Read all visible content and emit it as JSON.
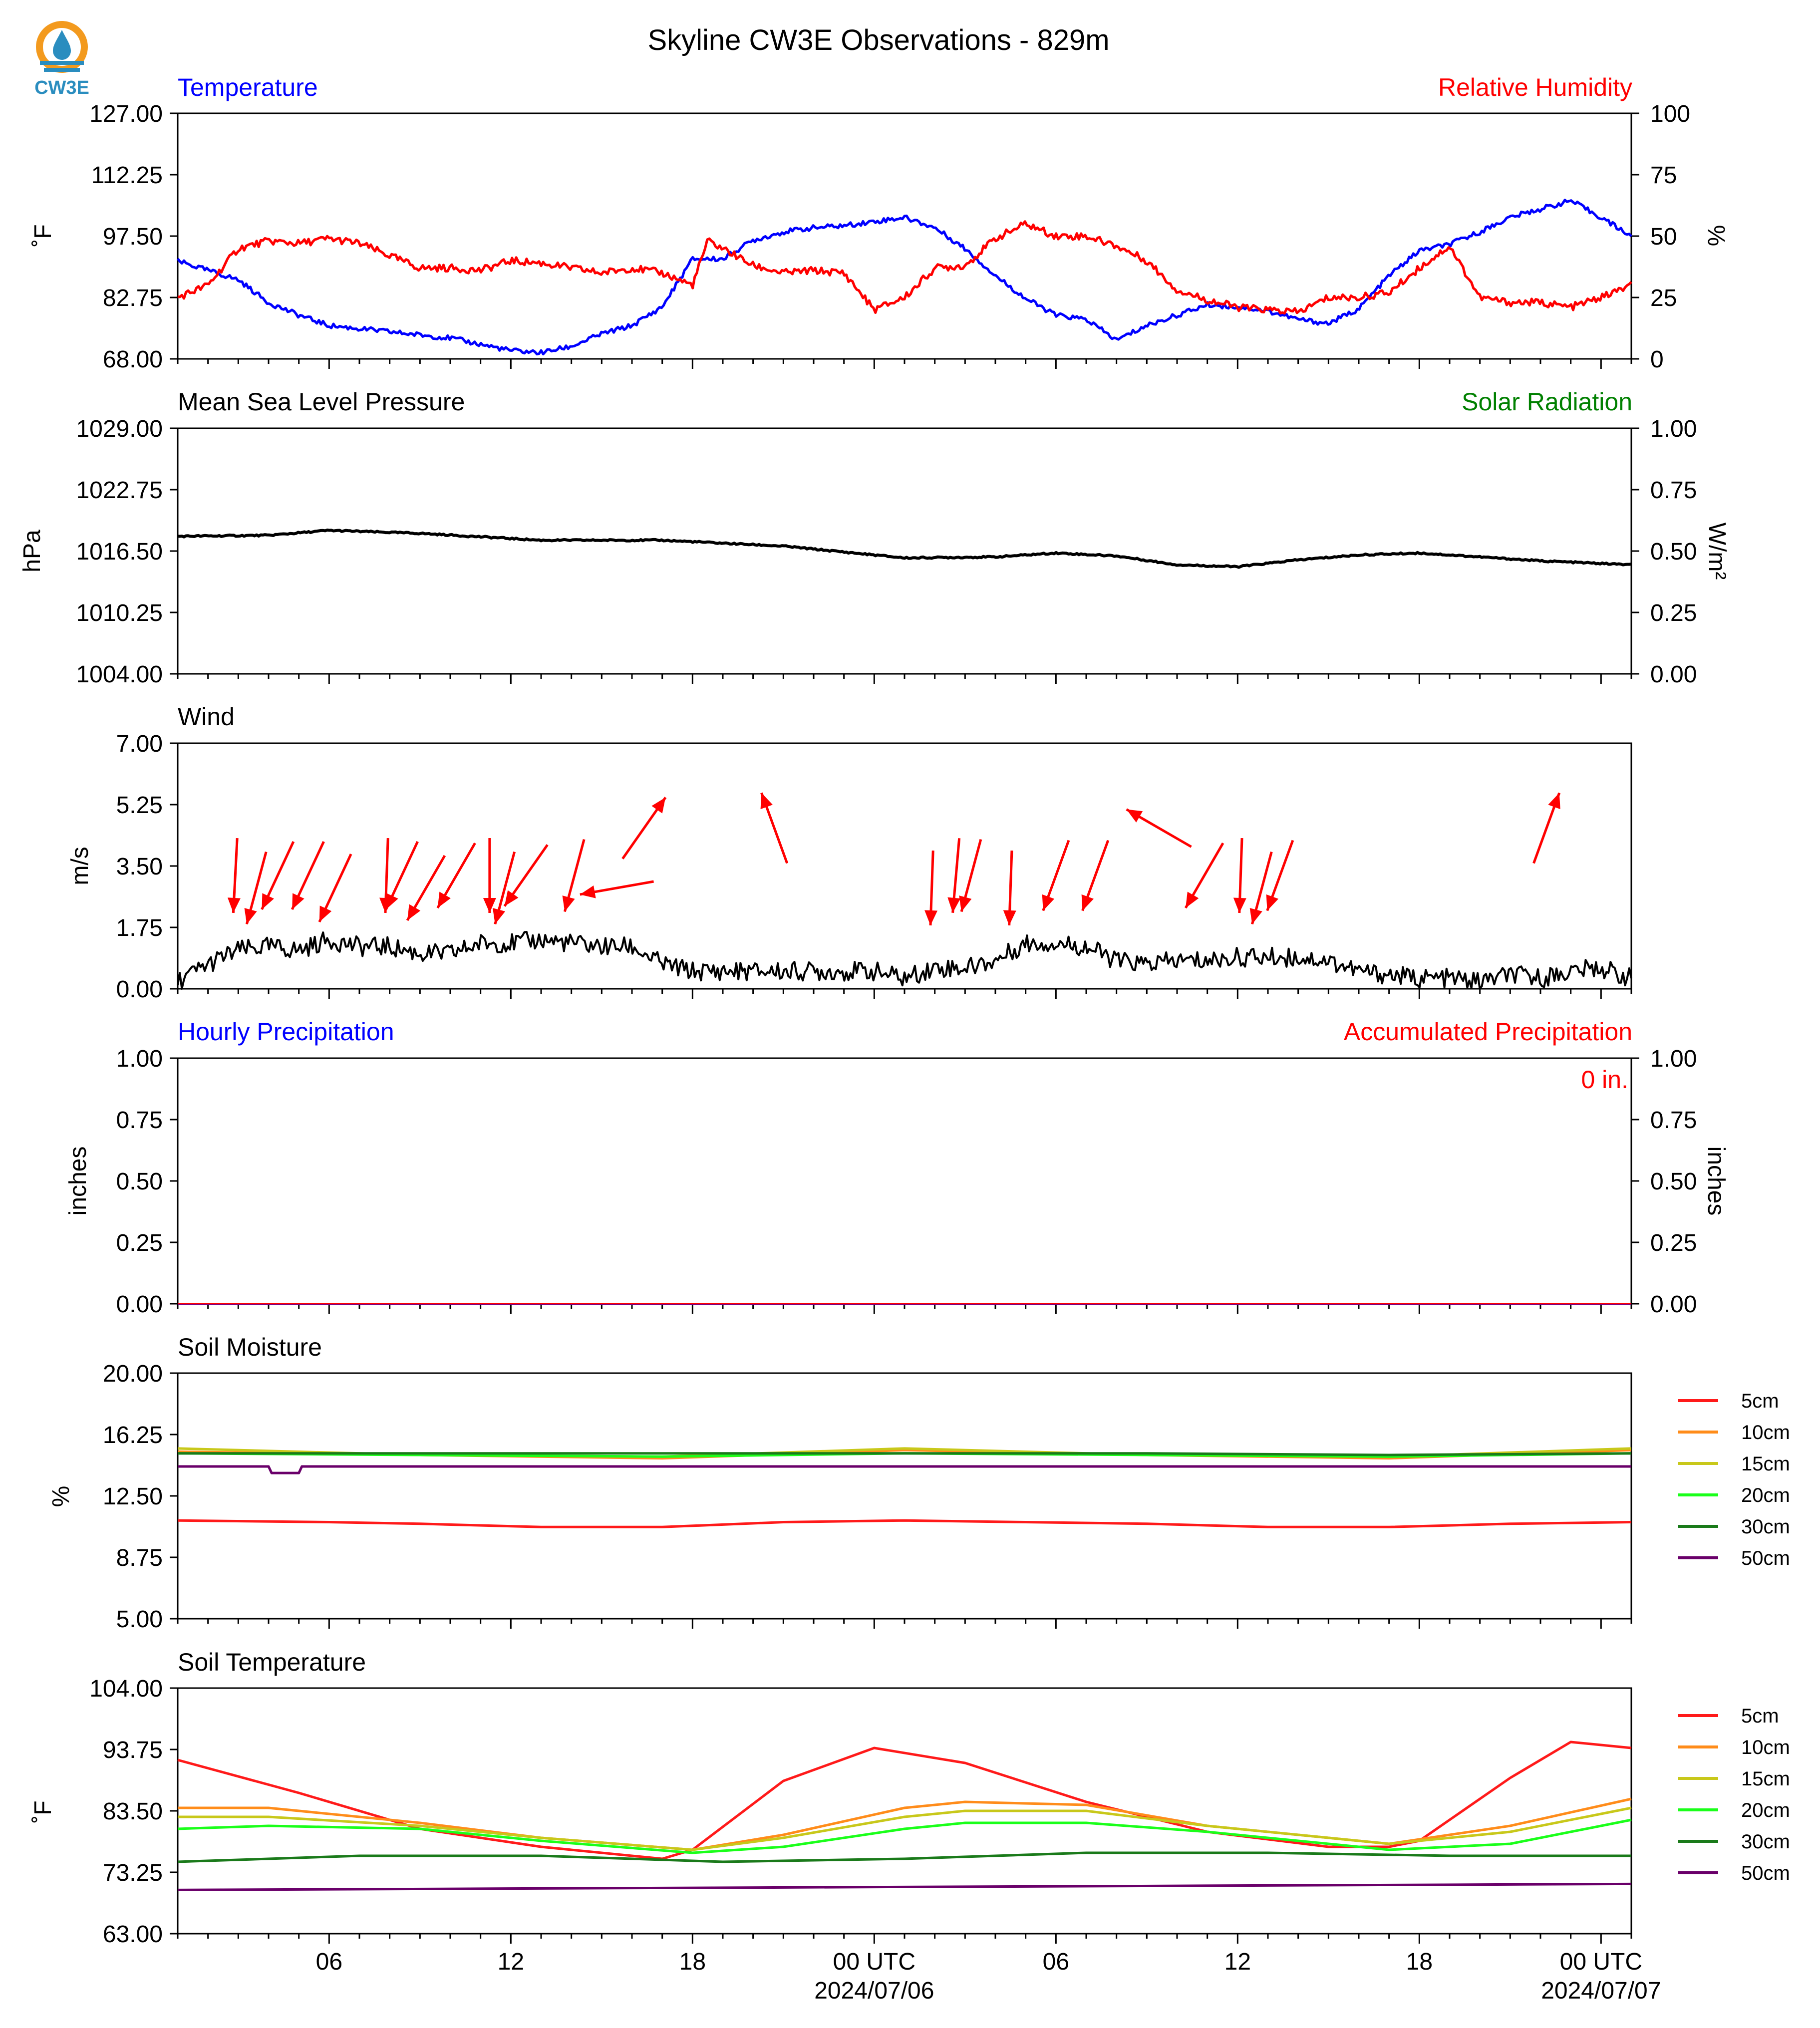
{
  "figure": {
    "title": "Skyline CW3E Observations - 829m",
    "logo_text": "CW3E",
    "x_ticks": [
      "06",
      "12",
      "18",
      "00 UTC",
      "06",
      "12",
      "18",
      "00 UTC"
    ],
    "date_labels": [
      "2024/07/06",
      "2024/07/07"
    ],
    "colors": {
      "temperature": "#0000ff",
      "humidity": "#ff0000",
      "solar": "#008000",
      "black": "#000000",
      "logo_orange": "#f39a1e",
      "logo_blue": "#2a8dbf"
    }
  },
  "panels": {
    "temp_rh": {
      "left_title": "Temperature",
      "right_title": "Relative Humidity",
      "ylabel_left": "˚F",
      "ylabel_right": "%",
      "yticks_left": [
        "127.00",
        "112.25",
        "97.50",
        "82.75",
        "68.00"
      ],
      "yticks_right": [
        "100",
        "75",
        "50",
        "25",
        "0"
      ]
    },
    "pressure": {
      "left_title": "Mean Sea Level Pressure",
      "right_title": "Solar Radiation",
      "ylabel_left": "hPa",
      "ylabel_right": "W/m²",
      "yticks_left": [
        "1029.00",
        "1022.75",
        "1016.50",
        "1010.25",
        "1004.00"
      ],
      "yticks_right": [
        "1.00",
        "0.75",
        "0.50",
        "0.25",
        "0.00"
      ]
    },
    "wind": {
      "left_title": "Wind",
      "ylabel_left": "m/s",
      "yticks_left": [
        "7.00",
        "5.25",
        "3.50",
        "1.75",
        "0.00"
      ]
    },
    "precip": {
      "left_title": "Hourly Precipitation",
      "right_title": "Accumulated Precipitation",
      "ylabel_left": "inches",
      "ylabel_right": "inches",
      "accum_label": "0 in.",
      "yticks_left": [
        "1.00",
        "0.75",
        "0.50",
        "0.25",
        "0.00"
      ],
      "yticks_right": [
        "1.00",
        "0.75",
        "0.50",
        "0.25",
        "0.00"
      ]
    },
    "soil_moisture": {
      "left_title": "Soil Moisture",
      "ylabel_left": "%",
      "yticks_left": [
        "20.00",
        "16.25",
        "12.50",
        "8.75",
        "5.00"
      ],
      "legend": [
        "5cm",
        "10cm",
        "15cm",
        "20cm",
        "30cm",
        "50cm"
      ]
    },
    "soil_temp": {
      "left_title": "Soil Temperature",
      "ylabel_left": "˚F",
      "yticks_left": [
        "104.00",
        "93.75",
        "83.50",
        "73.25",
        "63.00"
      ],
      "legend": [
        "5cm",
        "10cm",
        "15cm",
        "20cm",
        "30cm",
        "50cm"
      ]
    }
  },
  "chart_data": [
    {
      "type": "line",
      "title": "Temperature / Relative Humidity",
      "x_unit": "hours from start (start 2024/07/05 ~01 UTC)",
      "x_range": [
        0,
        48
      ],
      "ylim_left": [
        68,
        127
      ],
      "ylim_right": [
        0,
        100
      ],
      "series": [
        {
          "name": "Temperature",
          "axis": "left",
          "color": "#0000ff",
          "x": [
            0,
            2,
            3,
            4,
            5,
            7,
            9,
            11,
            12,
            13,
            14,
            15,
            16,
            17,
            18,
            19,
            20,
            21,
            22,
            23,
            24,
            25,
            26,
            27,
            28,
            29,
            30,
            31,
            32,
            33,
            34,
            35,
            36,
            37,
            38,
            39,
            40,
            41,
            42,
            43,
            44,
            45,
            46,
            47,
            48
          ],
          "values": [
            91.5,
            87,
            81.5,
            78.5,
            76,
            74.5,
            73,
            70,
            69.5,
            71,
            74,
            76,
            80.5,
            92,
            92,
            96.5,
            98.5,
            99.5,
            100,
            101,
            102,
            99.5,
            94.5,
            88,
            82.5,
            78.5,
            77.5,
            72.5,
            76,
            78.5,
            81,
            80.5,
            79.5,
            77.5,
            76.5,
            80,
            88,
            94,
            95.5,
            98.5,
            102,
            104,
            106,
            102,
            97.5
          ]
        },
        {
          "name": "Relative Humidity",
          "axis": "right",
          "color": "#ff0000",
          "x": [
            0,
            1,
            2,
            3,
            4,
            5,
            6,
            8,
            9,
            10,
            11,
            12,
            13,
            14,
            15,
            16,
            17,
            17.5,
            18,
            19,
            20,
            21,
            22,
            23,
            24,
            25,
            26,
            27,
            28,
            29,
            30,
            31,
            32,
            33,
            34,
            35,
            36,
            37,
            38,
            39,
            40,
            41,
            42,
            43,
            44,
            45,
            46,
            47,
            48
          ],
          "values": [
            25,
            30,
            45,
            48,
            47,
            49,
            47,
            37,
            37,
            36,
            40,
            39,
            37,
            35,
            37,
            35,
            30,
            48,
            45,
            38,
            35,
            36,
            35,
            20,
            25,
            37,
            38,
            49,
            55,
            50,
            50,
            46,
            40,
            28,
            24,
            21,
            20,
            19,
            25,
            25,
            27,
            37,
            46,
            25,
            23,
            23,
            21,
            25,
            30
          ]
        }
      ]
    },
    {
      "type": "line",
      "title": "Mean Sea Level Pressure",
      "x_unit": "hours from start",
      "x_range": [
        0,
        48
      ],
      "ylim_left": [
        1004,
        1029
      ],
      "ylim_right": [
        0,
        1
      ],
      "series": [
        {
          "name": "Mean Sea Level Pressure",
          "axis": "left",
          "color": "#000000",
          "x": [
            0,
            3,
            5,
            8,
            12,
            16,
            20,
            24,
            27,
            29,
            31,
            33,
            35,
            37,
            39,
            41,
            43,
            45,
            48
          ],
          "values": [
            1018.0,
            1018.1,
            1018.6,
            1018.3,
            1017.6,
            1017.6,
            1017.0,
            1015.8,
            1015.9,
            1016.3,
            1016.0,
            1015.1,
            1014.9,
            1015.6,
            1016.1,
            1016.3,
            1015.9,
            1015.5,
            1015.1
          ]
        }
      ]
    },
    {
      "type": "line",
      "title": "Wind",
      "x_unit": "hours from start",
      "x_range": [
        0,
        48
      ],
      "ylim": [
        0,
        7
      ],
      "series": [
        {
          "name": "Wind Speed",
          "color": "#000000",
          "x": [
            0,
            1,
            2,
            3,
            4,
            5,
            6,
            7,
            8,
            9,
            10,
            11,
            12,
            13,
            14,
            15,
            16,
            17,
            18,
            19,
            20,
            21,
            22,
            23,
            24,
            25,
            26,
            27,
            28,
            29,
            30,
            31,
            32,
            33,
            34,
            35,
            36,
            37,
            38,
            39,
            40,
            41,
            42,
            43,
            44,
            45,
            46,
            47,
            48
          ],
          "values": [
            0.2,
            0.7,
            1.1,
            1.2,
            1.1,
            1.4,
            1.2,
            1.2,
            1.0,
            1.0,
            1.3,
            1.3,
            1.4,
            1.3,
            1.2,
            1.2,
            0.7,
            0.5,
            0.5,
            0.5,
            0.5,
            0.5,
            0.5,
            0.5,
            0.3,
            0.6,
            0.6,
            0.8,
            1.3,
            1.3,
            1.2,
            0.8,
            0.7,
            0.8,
            0.8,
            0.9,
            0.9,
            0.9,
            0.8,
            0.5,
            0.4,
            0.3,
            0.3,
            0.2,
            0.4,
            0.3,
            0.5,
            0.6,
            0.3
          ]
        }
      ],
      "wind_direction_arrows": {
        "x": [
          1.9,
          2.6,
          3.3,
          4.3,
          5.2,
          6.9,
          7.4,
          8.2,
          9.2,
          10.3,
          10.8,
          11.5,
          13.1,
          14.5,
          15.4,
          19.7,
          24.9,
          25.7,
          26.2,
          27.5,
          29.0,
          30.3,
          32.4,
          33.9,
          35.1,
          35.8,
          36.4,
          45.2
        ],
        "toward_direction_deg": [
          183,
          195,
          205,
          205,
          205,
          182,
          205,
          210,
          210,
          180,
          195,
          215,
          195,
          260,
          35,
          340,
          182,
          185,
          195,
          182,
          200,
          200,
          300,
          210,
          182,
          195,
          200,
          20
        ]
      }
    },
    {
      "type": "line",
      "title": "Hourly Precipitation",
      "x_unit": "hours from start",
      "x_range": [
        0,
        48
      ],
      "ylim": [
        0,
        1
      ],
      "series": [
        {
          "name": "Hourly Precipitation",
          "axis": "left",
          "color": "#0000ff",
          "x": [
            0,
            48
          ],
          "values": [
            0,
            0
          ]
        },
        {
          "name": "Accumulated Precipitation",
          "axis": "right",
          "color": "#ff0000",
          "x": [
            0,
            48
          ],
          "values": [
            0,
            0
          ]
        }
      ]
    },
    {
      "type": "line",
      "title": "Soil Moisture",
      "x_unit": "hours from start",
      "x_range": [
        0,
        48
      ],
      "ylim": [
        5,
        20
      ],
      "series": [
        {
          "name": "5cm",
          "color": "#ff1a1a",
          "x": [
            0,
            5,
            8,
            12,
            16,
            20,
            24,
            28,
            32,
            36,
            40,
            44,
            48
          ],
          "values": [
            11.0,
            10.9,
            10.8,
            10.6,
            10.6,
            10.9,
            11.0,
            10.9,
            10.8,
            10.6,
            10.6,
            10.8,
            10.9
          ]
        },
        {
          "name": "10cm",
          "color": "#ff8c1a",
          "x": [
            0,
            8,
            16,
            24,
            32,
            40,
            48
          ],
          "values": [
            15.2,
            15.0,
            14.8,
            15.3,
            15.0,
            14.8,
            15.3
          ]
        },
        {
          "name": "15cm",
          "color": "#c8c81a",
          "x": [
            0,
            8,
            16,
            24,
            32,
            40,
            48
          ],
          "values": [
            15.4,
            15.0,
            14.9,
            15.4,
            15.0,
            14.9,
            15.4
          ]
        },
        {
          "name": "20cm",
          "color": "#1aff1a",
          "x": [
            0,
            8,
            16,
            24,
            32,
            40,
            48
          ],
          "values": [
            15.1,
            15.0,
            14.9,
            15.1,
            15.0,
            14.9,
            15.1
          ]
        },
        {
          "name": "30cm",
          "color": "#1a7a1a",
          "x": [
            0,
            8,
            16,
            24,
            32,
            40,
            48
          ],
          "values": [
            15.1,
            15.1,
            15.1,
            15.1,
            15.1,
            15.0,
            15.1
          ]
        },
        {
          "name": "50cm",
          "color": "#6a006a",
          "x": [
            0,
            3,
            3.1,
            4.0,
            4.1,
            48
          ],
          "values": [
            14.3,
            14.3,
            13.9,
            13.9,
            14.3,
            14.3
          ]
        }
      ]
    },
    {
      "type": "line",
      "title": "Soil Temperature",
      "x_unit": "hours from start",
      "x_range": [
        0,
        48
      ],
      "ylim": [
        63,
        104
      ],
      "series": [
        {
          "name": "5cm",
          "color": "#ff1a1a",
          "x": [
            0,
            4,
            8,
            12,
            16,
            17,
            20,
            23,
            26,
            30,
            34,
            38,
            40,
            41,
            44,
            46,
            48
          ],
          "values": [
            92,
            86.5,
            80.5,
            77.5,
            75.5,
            77,
            88.5,
            94,
            91.5,
            85,
            80,
            77.5,
            77.5,
            78.5,
            89,
            95,
            94
          ]
        },
        {
          "name": "10cm",
          "color": "#ff8c1a",
          "x": [
            0,
            3,
            8,
            12,
            17,
            20,
            24,
            26,
            30,
            34,
            40,
            44,
            48
          ],
          "values": [
            84,
            84,
            81.5,
            79,
            77,
            79.5,
            84,
            85,
            84.5,
            81,
            78,
            81,
            85.5
          ]
        },
        {
          "name": "15cm",
          "color": "#c8c81a",
          "x": [
            0,
            3,
            8,
            12,
            17,
            20,
            24,
            26,
            30,
            34,
            40,
            44,
            48
          ],
          "values": [
            82.5,
            82.5,
            81,
            79,
            77,
            79,
            82.5,
            83.5,
            83.5,
            81,
            78,
            80,
            84
          ]
        },
        {
          "name": "20cm",
          "color": "#1aff1a",
          "x": [
            0,
            3,
            8,
            12,
            17,
            20,
            24,
            26,
            30,
            34,
            40,
            44,
            48
          ],
          "values": [
            80.5,
            81,
            80.5,
            78.5,
            76.5,
            77.5,
            80.5,
            81.5,
            81.5,
            80,
            77,
            78,
            82
          ]
        },
        {
          "name": "30cm",
          "color": "#1a7a1a",
          "x": [
            0,
            6,
            12,
            18,
            24,
            30,
            36,
            42,
            48
          ],
          "values": [
            75,
            76,
            76,
            75,
            75.5,
            76.5,
            76.5,
            76,
            76
          ]
        },
        {
          "name": "50cm",
          "color": "#6a006a",
          "x": [
            0,
            48
          ],
          "values": [
            70.3,
            71.3
          ]
        }
      ]
    }
  ]
}
